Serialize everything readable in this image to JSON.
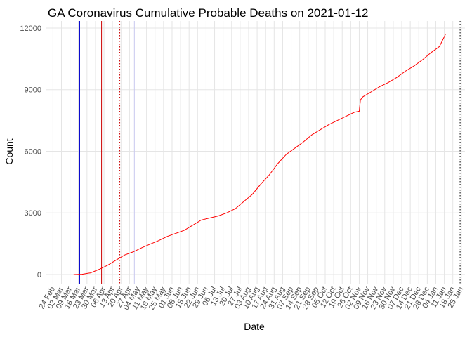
{
  "chart_data": {
    "type": "line",
    "title": "GA Coronavirus Cumulative Probable Deaths on 2021-01-12",
    "x_label": "Date",
    "y_label": "Count",
    "color": "#ff0000",
    "x": [
      "12 Mar",
      "19 Mar",
      "26 Mar",
      "02 Apr",
      "09 Apr",
      "16 Apr",
      "23 Apr",
      "30 Apr",
      "07 May",
      "14 May",
      "21 May",
      "28 May",
      "04 Jun",
      "11 Jun",
      "18 Jun",
      "25 Jun",
      "02 Jul",
      "09 Jul",
      "16 Jul",
      "23 Jul",
      "30 Jul",
      "06 Aug",
      "13 Aug",
      "20 Aug",
      "27 Aug",
      "03 Sep",
      "10 Sep",
      "17 Sep",
      "24 Sep",
      "01 Oct",
      "08 Oct",
      "15 Oct",
      "22 Oct",
      "29 Oct",
      "02 Nov",
      "03 Nov",
      "05 Nov",
      "12 Nov",
      "19 Nov",
      "26 Nov",
      "03 Dec",
      "10 Dec",
      "17 Dec",
      "24 Dec",
      "31 Dec",
      "07 Jan",
      "12 Jan"
    ],
    "values": [
      0,
      10,
      80,
      250,
      450,
      700,
      950,
      1100,
      1300,
      1480,
      1650,
      1850,
      2000,
      2150,
      2400,
      2650,
      2750,
      2850,
      3000,
      3200,
      3550,
      3900,
      4400,
      4850,
      5400,
      5850,
      6150,
      6450,
      6800,
      7050,
      7300,
      7500,
      7700,
      7900,
      7950,
      8500,
      8650,
      8900,
      9150,
      9350,
      9600,
      9900,
      10150,
      10450,
      10800,
      11100,
      11700
    ],
    "vlines": [
      {
        "x": "17 Mar",
        "color": "#0000cc",
        "dash": "solid"
      },
      {
        "x": "04 Apr",
        "color": "#cc0000",
        "dash": "solid"
      },
      {
        "x": "19 Apr",
        "color": "#cc0000",
        "dash": "dotted"
      },
      {
        "x": "01 May",
        "color": "#c8c8f0",
        "dash": "solid"
      },
      {
        "x": "24 Jan",
        "color": "#000000",
        "dash": "dotted"
      }
    ],
    "xlim": [
      "18 Feb",
      "28 Jan"
    ],
    "xticks": [
      "24 Feb",
      "02 Mar",
      "09 Mar",
      "16 Mar",
      "23 Mar",
      "30 Mar",
      "06 Apr",
      "13 Apr",
      "20 Apr",
      "27 Apr",
      "04 May",
      "11 May",
      "18 May",
      "25 May",
      "01 Jun",
      "08 Jun",
      "15 Jun",
      "22 Jun",
      "29 Jun",
      "06 Jul",
      "13 Jul",
      "20 Jul",
      "27 Jul",
      "03 Aug",
      "10 Aug",
      "17 Aug",
      "24 Aug",
      "31 Aug",
      "07 Sep",
      "14 Sep",
      "21 Sep",
      "28 Sep",
      "05 Oct",
      "12 Oct",
      "19 Oct",
      "26 Oct",
      "02 Nov",
      "09 Nov",
      "16 Nov",
      "23 Nov",
      "30 Nov",
      "07 Dec",
      "14 Dec",
      "21 Dec",
      "28 Dec",
      "04 Jan",
      "11 Jan",
      "18 Jan",
      "25 Jan"
    ],
    "ylim": [
      -480,
      12340
    ],
    "yticks": [
      0,
      3000,
      6000,
      9000,
      12000
    ],
    "grid": true
  }
}
